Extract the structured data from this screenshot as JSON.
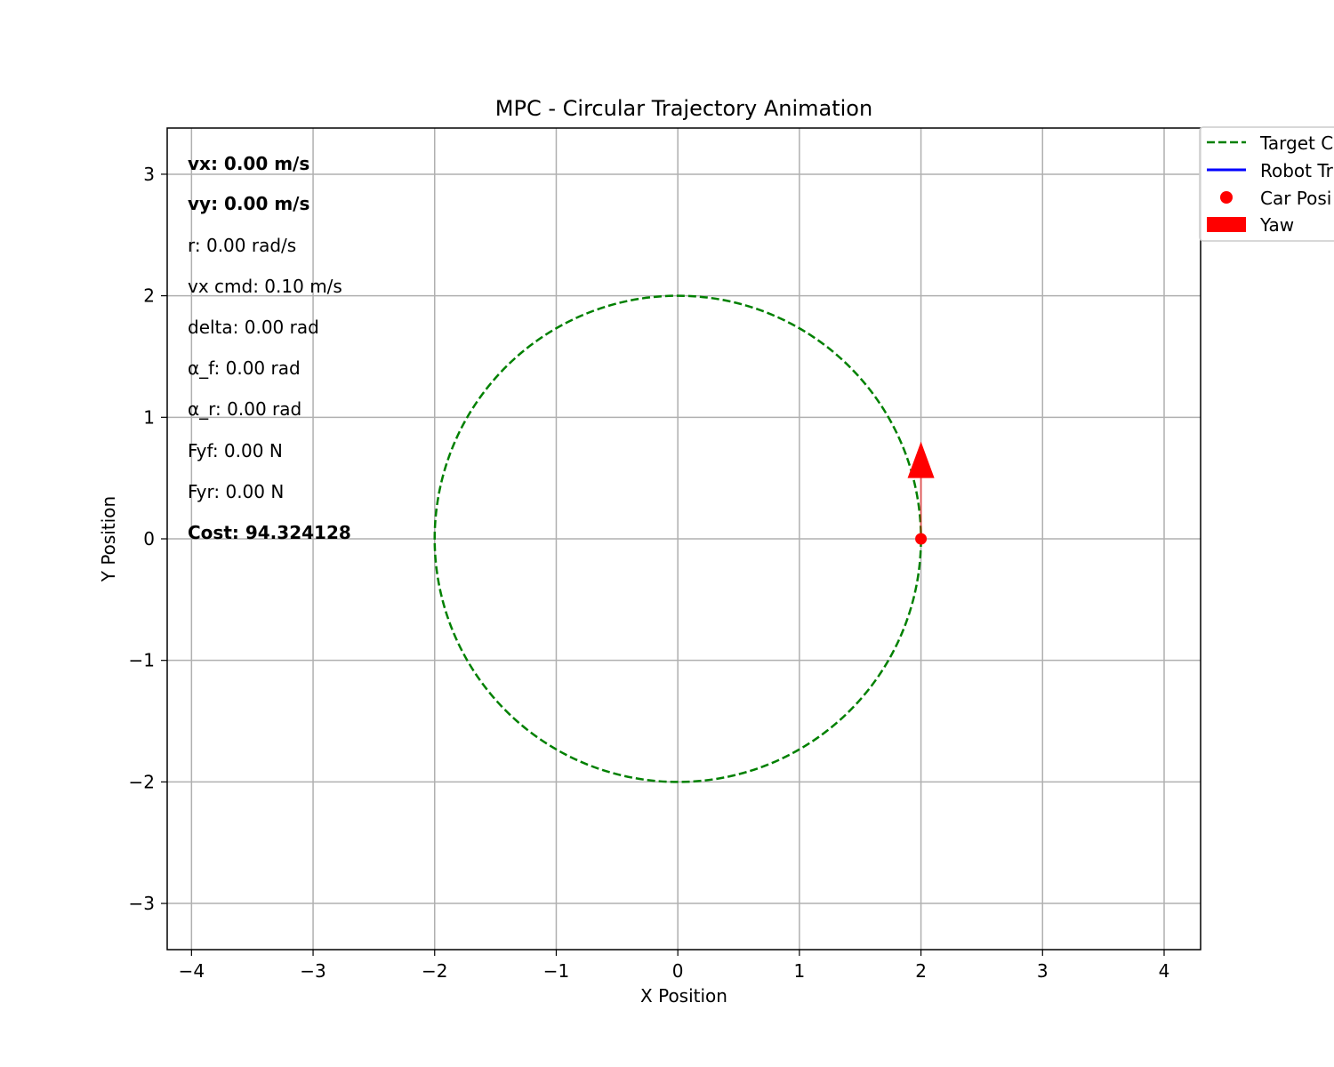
{
  "chart_data": {
    "type": "line",
    "title": "MPC - Circular Trajectory Animation",
    "xlabel": "X Position",
    "ylabel": "Y Position",
    "xlim": [
      -4.2,
      4.3
    ],
    "ylim": [
      -3.38,
      3.38
    ],
    "grid": true,
    "x_ticks": [
      -4,
      -3,
      -2,
      -1,
      0,
      1,
      2,
      3,
      4
    ],
    "y_ticks": [
      -3,
      -2,
      -1,
      0,
      1,
      2,
      3
    ],
    "x_tick_labels": [
      "−4",
      "−3",
      "−2",
      "−1",
      "0",
      "1",
      "2",
      "3",
      "4"
    ],
    "y_tick_labels": [
      "−3",
      "−2",
      "−1",
      "0",
      "1",
      "2",
      "3"
    ],
    "legend_placement": "outside upper right (clipped)",
    "legend": [
      {
        "label": "Target C",
        "style": "dashed",
        "color": "#008000"
      },
      {
        "label": "Robot Tr",
        "style": "line",
        "color": "#0000ff"
      },
      {
        "label": "Car Posi",
        "style": "marker",
        "color": "#ff0000"
      },
      {
        "label": "Yaw",
        "style": "patch",
        "color": "#ff0000"
      }
    ],
    "series": [
      {
        "name": "Target C",
        "kind": "circle",
        "center": [
          0,
          0
        ],
        "radius": 2,
        "color": "#008000",
        "style": "dashed"
      },
      {
        "name": "Robot Tr",
        "x": [],
        "y": [],
        "color": "#0000ff"
      },
      {
        "name": "Car Posi",
        "x": [
          2.0
        ],
        "y": [
          0.0
        ],
        "color": "#ff0000"
      },
      {
        "name": "Yaw",
        "kind": "arrow",
        "origin": [
          2.0,
          0.0
        ],
        "heading_rad": 1.5708,
        "length": 0.8,
        "color": "#ff0000"
      }
    ],
    "annotations": [
      {
        "text": "vx: 0.00 m/s",
        "bold": true
      },
      {
        "text": "vy: 0.00 m/s",
        "bold": true
      },
      {
        "text": "r: 0.00 rad/s",
        "bold": false
      },
      {
        "text": "vx cmd: 0.10 m/s",
        "bold": false
      },
      {
        "text": "delta: 0.00 rad",
        "bold": false
      },
      {
        "text": "α_f: 0.00 rad",
        "bold": false
      },
      {
        "text": "α_r: 0.00 rad",
        "bold": false
      },
      {
        "text": "Fyf: 0.00 N",
        "bold": false
      },
      {
        "text": "Fyr: 0.00 N",
        "bold": false
      },
      {
        "text": "Cost: 94.324128",
        "bold": true
      }
    ]
  }
}
